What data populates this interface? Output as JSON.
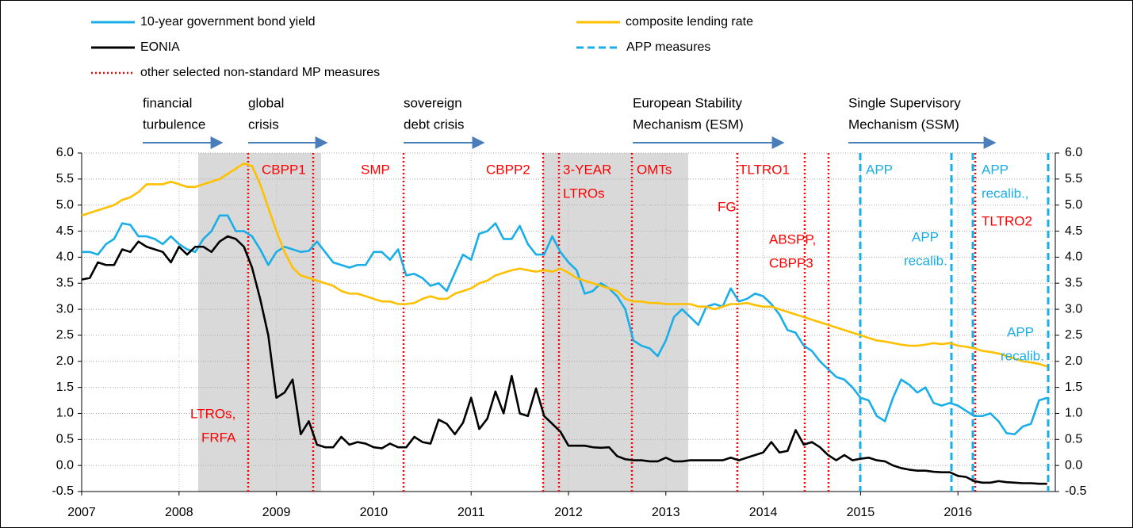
{
  "chart_data": {
    "type": "line",
    "categories": [
      "2007",
      null,
      null,
      null,
      null,
      null,
      null,
      null,
      null,
      null,
      null,
      null,
      "2008",
      null,
      null,
      null,
      null,
      null,
      null,
      null,
      null,
      null,
      null,
      null,
      "2009",
      null,
      null,
      null,
      null,
      null,
      null,
      null,
      null,
      null,
      null,
      null,
      "2010",
      null,
      null,
      null,
      null,
      null,
      null,
      null,
      null,
      null,
      null,
      null,
      "2011",
      null,
      null,
      null,
      null,
      null,
      null,
      null,
      null,
      null,
      null,
      null,
      "2012",
      null,
      null,
      null,
      null,
      null,
      null,
      null,
      null,
      null,
      null,
      null,
      "2013",
      null,
      null,
      null,
      null,
      null,
      null,
      null,
      null,
      null,
      null,
      null,
      "2014",
      null,
      null,
      null,
      null,
      null,
      null,
      null,
      null,
      null,
      null,
      null,
      "2015",
      null,
      null,
      null,
      null,
      null,
      null,
      null,
      null,
      null,
      null,
      null,
      "2016",
      null,
      null,
      null,
      null,
      null,
      null,
      null,
      null,
      null,
      null,
      null
    ],
    "series": [
      {
        "name": "10-year government bond yield",
        "color": "#1aaee8",
        "values": [
          4.1,
          4.1,
          4.05,
          4.25,
          4.35,
          4.65,
          4.62,
          4.4,
          4.4,
          4.35,
          4.25,
          4.4,
          4.25,
          4.15,
          4.1,
          4.35,
          4.5,
          4.8,
          4.8,
          4.5,
          4.5,
          4.4,
          4.15,
          3.85,
          4.1,
          4.2,
          4.15,
          4.1,
          4.12,
          4.3,
          4.1,
          3.9,
          3.85,
          3.8,
          3.85,
          3.85,
          4.1,
          4.1,
          3.95,
          4.15,
          3.65,
          3.68,
          3.6,
          3.45,
          3.5,
          3.35,
          3.7,
          4.05,
          3.95,
          4.45,
          4.5,
          4.65,
          4.35,
          4.35,
          4.6,
          4.25,
          4.05,
          4.05,
          4.4,
          4.1,
          3.9,
          3.75,
          3.3,
          3.35,
          3.5,
          3.4,
          3.25,
          3.0,
          2.4,
          2.3,
          2.25,
          2.1,
          2.4,
          2.85,
          3.0,
          2.85,
          2.7,
          3.05,
          3.1,
          3.05,
          3.4,
          3.15,
          3.2,
          3.3,
          3.25,
          3.1,
          2.9,
          2.6,
          2.55,
          2.3,
          2.2,
          2.0,
          1.85,
          1.7,
          1.65,
          1.5,
          1.3,
          1.25,
          0.95,
          0.85,
          1.3,
          1.65,
          1.55,
          1.4,
          1.5,
          1.2,
          1.15,
          1.2,
          1.15,
          1.05,
          0.95,
          0.95,
          1.0,
          0.85,
          0.62,
          0.6,
          0.75,
          0.8,
          1.25,
          1.3
        ]
      },
      {
        "name": "composite lending rate",
        "color": "#ffc000",
        "values": [
          4.8,
          4.85,
          4.9,
          4.95,
          5.0,
          5.1,
          5.15,
          5.25,
          5.4,
          5.4,
          5.4,
          5.45,
          5.4,
          5.35,
          5.35,
          5.4,
          5.45,
          5.5,
          5.6,
          5.7,
          5.8,
          5.75,
          5.4,
          4.95,
          4.5,
          4.1,
          3.8,
          3.65,
          3.6,
          3.55,
          3.5,
          3.45,
          3.35,
          3.3,
          3.3,
          3.25,
          3.2,
          3.15,
          3.15,
          3.1,
          3.1,
          3.12,
          3.2,
          3.25,
          3.2,
          3.2,
          3.3,
          3.35,
          3.4,
          3.5,
          3.55,
          3.65,
          3.7,
          3.75,
          3.78,
          3.75,
          3.72,
          3.75,
          3.72,
          3.78,
          3.7,
          3.6,
          3.55,
          3.5,
          3.45,
          3.4,
          3.35,
          3.2,
          3.15,
          3.15,
          3.12,
          3.12,
          3.1,
          3.1,
          3.1,
          3.1,
          3.05,
          3.05,
          3.0,
          3.05,
          3.1,
          3.1,
          3.12,
          3.08,
          3.05,
          3.05,
          3.0,
          2.95,
          2.9,
          2.85,
          2.8,
          2.75,
          2.7,
          2.65,
          2.6,
          2.55,
          2.5,
          2.45,
          2.4,
          2.38,
          2.35,
          2.32,
          2.3,
          2.3,
          2.32,
          2.35,
          2.33,
          2.35,
          2.3,
          2.28,
          2.25,
          2.2,
          2.18,
          2.15,
          2.1,
          2.05,
          2.0,
          1.98,
          1.95,
          1.9
        ]
      },
      {
        "name": "EONIA",
        "color": "#000000",
        "values": [
          3.57,
          3.6,
          3.9,
          3.85,
          3.85,
          4.15,
          4.1,
          4.3,
          4.2,
          4.15,
          4.1,
          3.9,
          4.2,
          4.05,
          4.2,
          4.2,
          4.1,
          4.3,
          4.4,
          4.35,
          4.2,
          3.8,
          3.2,
          2.5,
          1.3,
          1.4,
          1.65,
          0.6,
          0.85,
          0.4,
          0.35,
          0.35,
          0.55,
          0.4,
          0.45,
          0.42,
          0.35,
          0.33,
          0.42,
          0.35,
          0.35,
          0.55,
          0.45,
          0.42,
          0.88,
          0.8,
          0.6,
          0.82,
          1.3,
          0.7,
          0.9,
          1.42,
          1.0,
          1.72,
          1.0,
          0.95,
          1.48,
          0.95,
          0.8,
          0.65,
          0.38,
          0.38,
          0.38,
          0.35,
          0.34,
          0.35,
          0.18,
          0.12,
          0.1,
          0.1,
          0.08,
          0.08,
          0.15,
          0.08,
          0.08,
          0.1,
          0.1,
          0.1,
          0.1,
          0.1,
          0.15,
          0.1,
          0.15,
          0.2,
          0.25,
          0.45,
          0.25,
          0.28,
          0.68,
          0.4,
          0.45,
          0.35,
          0.2,
          0.1,
          0.2,
          0.1,
          0.13,
          0.15,
          0.1,
          0.08,
          0.0,
          -0.05,
          -0.08,
          -0.1,
          -0.1,
          -0.12,
          -0.13,
          -0.13,
          -0.2,
          -0.22,
          -0.3,
          -0.33,
          -0.33,
          -0.3,
          -0.32,
          -0.33,
          -0.34,
          -0.34,
          -0.35,
          -0.35
        ]
      }
    ],
    "measure_legend": [
      "APP measures",
      "other selected non-standard MP measures"
    ],
    "periods": [
      [
        "financial",
        "turbulence"
      ],
      [
        "global",
        "crisis"
      ],
      [
        "sovereign",
        "debt crisis"
      ],
      [
        "European Stability",
        "Mechanism (ESM)"
      ],
      [
        "Single Supervisory",
        "Mechanism (SSM)"
      ]
    ],
    "events": [
      [
        "CBPP1"
      ],
      [
        "SMP"
      ],
      [
        "CBPP2"
      ],
      [
        "3-YEAR",
        "LTROs"
      ],
      [
        "OMTs"
      ],
      [
        "TLTRO1"
      ],
      [
        "FG"
      ],
      [
        "ABSPP,",
        "CBPP3"
      ],
      [
        "LTROs,",
        "FRFA"
      ],
      [
        "APP"
      ],
      [
        "APP",
        "recalib."
      ],
      [
        "APP",
        "recalib.,"
      ],
      [
        "TLTRO2"
      ],
      [
        "APP",
        "recalib."
      ]
    ],
    "ylim": [
      -0.5,
      6.0
    ],
    "yticks": [
      {
        "value": -0.5,
        "label": "-0.5"
      },
      {
        "value": 0,
        "label": "0.0"
      },
      {
        "value": 0.5,
        "label": "0.5"
      },
      {
        "value": 1,
        "label": "1.0"
      },
      {
        "value": 1.5,
        "label": "1.5"
      },
      {
        "value": 2,
        "label": "2.0"
      },
      {
        "value": 2.5,
        "label": "2.5"
      },
      {
        "value": 3,
        "label": "3.0"
      },
      {
        "value": 3.5,
        "label": "3.5"
      },
      {
        "value": 4,
        "label": "4.0"
      },
      {
        "value": 4.5,
        "label": "4.5"
      },
      {
        "value": 5,
        "label": "5.0"
      },
      {
        "value": 5.5,
        "label": "5.5"
      },
      {
        "value": 6,
        "label": "6.0"
      }
    ],
    "grid": true
  }
}
